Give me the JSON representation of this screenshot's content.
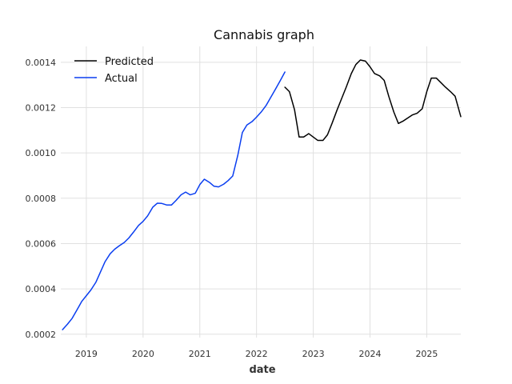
{
  "chart_data": {
    "type": "line",
    "title": "Cannabis graph",
    "xlabel": "date",
    "ylabel": "",
    "xlim": [
      2018.55,
      2025.6
    ],
    "ylim": [
      0.000185,
      0.00147
    ],
    "grid": true,
    "legend_position": "top-left",
    "x_ticks": [
      2019,
      2020,
      2021,
      2022,
      2023,
      2024,
      2025
    ],
    "y_ticks": [
      0.0002,
      0.0004,
      0.0006,
      0.0008,
      0.001,
      0.0012,
      0.0014
    ],
    "y_tick_labels": [
      "0.0002",
      "0.0004",
      "0.0006",
      "0.0008",
      "0.0010",
      "0.0012",
      "0.0014"
    ],
    "series": [
      {
        "name": "Predicted",
        "color": "#000000",
        "points": [
          [
            2022.5,
            0.00129
          ],
          [
            2022.58,
            0.00127
          ],
          [
            2022.67,
            0.00119
          ],
          [
            2022.75,
            0.00107
          ],
          [
            2022.83,
            0.00107
          ],
          [
            2022.92,
            0.001085
          ],
          [
            2023.0,
            0.00107
          ],
          [
            2023.08,
            0.001055
          ],
          [
            2023.17,
            0.001055
          ],
          [
            2023.25,
            0.00108
          ],
          [
            2023.33,
            0.00113
          ],
          [
            2023.42,
            0.00119
          ],
          [
            2023.5,
            0.00124
          ],
          [
            2023.58,
            0.00129
          ],
          [
            2023.67,
            0.00135
          ],
          [
            2023.75,
            0.00139
          ],
          [
            2023.83,
            0.00141
          ],
          [
            2023.92,
            0.001405
          ],
          [
            2024.0,
            0.00138
          ],
          [
            2024.08,
            0.00135
          ],
          [
            2024.17,
            0.00134
          ],
          [
            2024.25,
            0.00132
          ],
          [
            2024.33,
            0.00125
          ],
          [
            2024.42,
            0.00118
          ],
          [
            2024.5,
            0.00113
          ],
          [
            2024.58,
            0.00114
          ],
          [
            2024.67,
            0.001155
          ],
          [
            2024.75,
            0.001168
          ],
          [
            2024.83,
            0.001175
          ],
          [
            2024.92,
            0.001195
          ],
          [
            2025.0,
            0.00127
          ],
          [
            2025.08,
            0.00133
          ],
          [
            2025.17,
            0.00133
          ],
          [
            2025.25,
            0.00131
          ],
          [
            2025.33,
            0.00129
          ],
          [
            2025.42,
            0.00127
          ],
          [
            2025.5,
            0.00125
          ],
          [
            2025.6,
            0.00116
          ]
        ]
      },
      {
        "name": "Actual",
        "color": "#0a3ef0",
        "points": [
          [
            2018.58,
            0.00022
          ],
          [
            2018.67,
            0.000245
          ],
          [
            2018.75,
            0.00027
          ],
          [
            2018.83,
            0.000305
          ],
          [
            2018.92,
            0.000345
          ],
          [
            2019.0,
            0.00037
          ],
          [
            2019.08,
            0.000395
          ],
          [
            2019.17,
            0.00043
          ],
          [
            2019.25,
            0.000475
          ],
          [
            2019.33,
            0.00052
          ],
          [
            2019.42,
            0.000555
          ],
          [
            2019.5,
            0.000575
          ],
          [
            2019.58,
            0.00059
          ],
          [
            2019.67,
            0.000605
          ],
          [
            2019.75,
            0.000625
          ],
          [
            2019.83,
            0.00065
          ],
          [
            2019.92,
            0.00068
          ],
          [
            2020.0,
            0.000698
          ],
          [
            2020.08,
            0.000722
          ],
          [
            2020.17,
            0.00076
          ],
          [
            2020.25,
            0.000778
          ],
          [
            2020.33,
            0.000777
          ],
          [
            2020.42,
            0.00077
          ],
          [
            2020.5,
            0.00077
          ],
          [
            2020.58,
            0.00079
          ],
          [
            2020.67,
            0.000815
          ],
          [
            2020.75,
            0.000827
          ],
          [
            2020.83,
            0.000815
          ],
          [
            2020.92,
            0.000822
          ],
          [
            2021.0,
            0.00086
          ],
          [
            2021.08,
            0.000884
          ],
          [
            2021.17,
            0.00087
          ],
          [
            2021.25,
            0.000853
          ],
          [
            2021.33,
            0.00085
          ],
          [
            2021.42,
            0.000862
          ],
          [
            2021.5,
            0.000878
          ],
          [
            2021.58,
            0.000898
          ],
          [
            2021.67,
            0.00099
          ],
          [
            2021.75,
            0.00109
          ],
          [
            2021.83,
            0.001123
          ],
          [
            2021.92,
            0.001138
          ],
          [
            2022.0,
            0.001158
          ],
          [
            2022.08,
            0.00118
          ],
          [
            2022.17,
            0.00121
          ],
          [
            2022.25,
            0.001245
          ],
          [
            2022.33,
            0.00128
          ],
          [
            2022.42,
            0.00132
          ],
          [
            2022.5,
            0.001357
          ]
        ]
      }
    ]
  }
}
